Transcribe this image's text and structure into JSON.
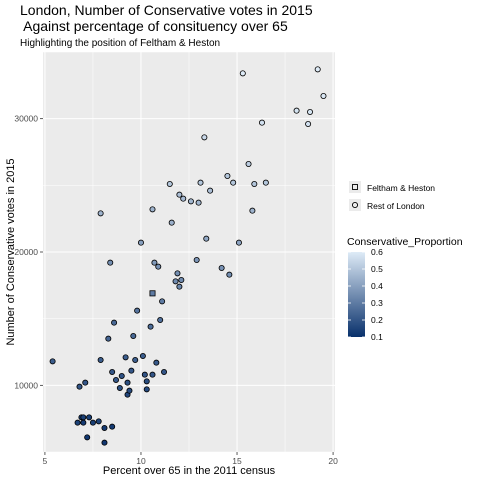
{
  "chart_data": {
    "type": "scatter",
    "title_line1": "London, Number of Conservative votes in 2015",
    "title_line2": " Against percentage of consituency over 65",
    "subtitle": "Highlighting the position of Feltham & Heston",
    "xlabel": "Percent over 65 in the 2011 census",
    "ylabel": "Number of Conservative votes in 2015",
    "xlim": [
      4.9,
      20.1
    ],
    "ylim": [
      5000,
      35000
    ],
    "x_ticks": [
      5,
      10,
      15,
      20
    ],
    "y_ticks": [
      10000,
      20000,
      30000
    ],
    "y_tick_labels": [
      "10000",
      "20000",
      "30000"
    ],
    "grid": true,
    "color_scale": {
      "name": "Conservative_Proportion",
      "low_value": 0.1,
      "high_value": 0.6,
      "low_color": "#08306b",
      "high_color": "#deebf7",
      "breaks": [
        "0.6",
        "0.5",
        "0.4",
        "0.3",
        "0.2",
        "0.1"
      ]
    },
    "shape_legend": {
      "entries": [
        {
          "label": "Feltham & Heston",
          "shape": "square"
        },
        {
          "label": "Rest of London",
          "shape": "circle"
        }
      ]
    },
    "series": [
      {
        "name": "Feltham & Heston",
        "shape": "square",
        "points": [
          {
            "x": 10.6,
            "y": 16900,
            "c": 0.3
          }
        ]
      },
      {
        "name": "Rest of London",
        "shape": "circle",
        "points": [
          {
            "x": 5.4,
            "y": 11800,
            "c": 0.22
          },
          {
            "x": 6.7,
            "y": 7200,
            "c": 0.15
          },
          {
            "x": 6.8,
            "y": 9900,
            "c": 0.2
          },
          {
            "x": 6.9,
            "y": 7600,
            "c": 0.14
          },
          {
            "x": 7.0,
            "y": 7200,
            "c": 0.13
          },
          {
            "x": 7.0,
            "y": 7600,
            "c": 0.14
          },
          {
            "x": 7.1,
            "y": 10200,
            "c": 0.2
          },
          {
            "x": 7.2,
            "y": 6100,
            "c": 0.12
          },
          {
            "x": 7.3,
            "y": 7600,
            "c": 0.14
          },
          {
            "x": 7.5,
            "y": 7200,
            "c": 0.14
          },
          {
            "x": 7.8,
            "y": 7300,
            "c": 0.15
          },
          {
            "x": 7.9,
            "y": 11900,
            "c": 0.22
          },
          {
            "x": 7.9,
            "y": 22900,
            "c": 0.45
          },
          {
            "x": 8.1,
            "y": 5700,
            "c": 0.12
          },
          {
            "x": 8.1,
            "y": 6800,
            "c": 0.13
          },
          {
            "x": 8.3,
            "y": 13500,
            "c": 0.24
          },
          {
            "x": 8.4,
            "y": 19200,
            "c": 0.35
          },
          {
            "x": 8.5,
            "y": 6900,
            "c": 0.13
          },
          {
            "x": 8.5,
            "y": 11000,
            "c": 0.2
          },
          {
            "x": 8.6,
            "y": 14700,
            "c": 0.25
          },
          {
            "x": 8.7,
            "y": 10400,
            "c": 0.2
          },
          {
            "x": 8.9,
            "y": 9800,
            "c": 0.18
          },
          {
            "x": 9.0,
            "y": 10700,
            "c": 0.19
          },
          {
            "x": 9.2,
            "y": 12100,
            "c": 0.22
          },
          {
            "x": 9.3,
            "y": 9300,
            "c": 0.16
          },
          {
            "x": 9.3,
            "y": 10200,
            "c": 0.18
          },
          {
            "x": 9.4,
            "y": 9600,
            "c": 0.17
          },
          {
            "x": 9.5,
            "y": 11100,
            "c": 0.2
          },
          {
            "x": 9.6,
            "y": 13700,
            "c": 0.25
          },
          {
            "x": 9.7,
            "y": 11900,
            "c": 0.22
          },
          {
            "x": 9.8,
            "y": 15600,
            "c": 0.28
          },
          {
            "x": 10.0,
            "y": 20700,
            "c": 0.4
          },
          {
            "x": 10.1,
            "y": 12200,
            "c": 0.22
          },
          {
            "x": 10.2,
            "y": 10800,
            "c": 0.2
          },
          {
            "x": 10.3,
            "y": 9700,
            "c": 0.17
          },
          {
            "x": 10.3,
            "y": 10300,
            "c": 0.18
          },
          {
            "x": 10.5,
            "y": 14400,
            "c": 0.26
          },
          {
            "x": 10.6,
            "y": 23200,
            "c": 0.45
          },
          {
            "x": 10.6,
            "y": 10800,
            "c": 0.2
          },
          {
            "x": 10.7,
            "y": 19200,
            "c": 0.38
          },
          {
            "x": 10.8,
            "y": 11700,
            "c": 0.21
          },
          {
            "x": 10.9,
            "y": 18900,
            "c": 0.36
          },
          {
            "x": 11.0,
            "y": 14900,
            "c": 0.27
          },
          {
            "x": 11.1,
            "y": 16300,
            "c": 0.3
          },
          {
            "x": 11.2,
            "y": 11000,
            "c": 0.2
          },
          {
            "x": 11.5,
            "y": 25100,
            "c": 0.5
          },
          {
            "x": 11.6,
            "y": 22200,
            "c": 0.44
          },
          {
            "x": 11.8,
            "y": 17800,
            "c": 0.34
          },
          {
            "x": 11.9,
            "y": 18400,
            "c": 0.35
          },
          {
            "x": 12.0,
            "y": 17400,
            "c": 0.33
          },
          {
            "x": 12.0,
            "y": 24300,
            "c": 0.48
          },
          {
            "x": 12.1,
            "y": 17900,
            "c": 0.34
          },
          {
            "x": 12.2,
            "y": 24000,
            "c": 0.47
          },
          {
            "x": 12.6,
            "y": 23800,
            "c": 0.46
          },
          {
            "x": 12.9,
            "y": 19400,
            "c": 0.37
          },
          {
            "x": 13.0,
            "y": 23700,
            "c": 0.46
          },
          {
            "x": 13.1,
            "y": 25200,
            "c": 0.5
          },
          {
            "x": 13.3,
            "y": 28600,
            "c": 0.55
          },
          {
            "x": 13.4,
            "y": 21000,
            "c": 0.42
          },
          {
            "x": 13.6,
            "y": 24600,
            "c": 0.48
          },
          {
            "x": 14.2,
            "y": 18800,
            "c": 0.36
          },
          {
            "x": 14.5,
            "y": 25700,
            "c": 0.5
          },
          {
            "x": 14.6,
            "y": 18300,
            "c": 0.35
          },
          {
            "x": 14.8,
            "y": 25200,
            "c": 0.5
          },
          {
            "x": 15.1,
            "y": 20700,
            "c": 0.41
          },
          {
            "x": 15.3,
            "y": 33400,
            "c": 0.6
          },
          {
            "x": 15.6,
            "y": 26600,
            "c": 0.52
          },
          {
            "x": 15.8,
            "y": 23100,
            "c": 0.45
          },
          {
            "x": 15.9,
            "y": 25100,
            "c": 0.5
          },
          {
            "x": 16.3,
            "y": 29700,
            "c": 0.57
          },
          {
            "x": 16.5,
            "y": 25200,
            "c": 0.5
          },
          {
            "x": 18.1,
            "y": 30600,
            "c": 0.58
          },
          {
            "x": 18.7,
            "y": 29600,
            "c": 0.57
          },
          {
            "x": 18.8,
            "y": 30500,
            "c": 0.58
          },
          {
            "x": 19.2,
            "y": 33700,
            "c": 0.6
          },
          {
            "x": 19.5,
            "y": 31700,
            "c": 0.59
          }
        ]
      }
    ]
  }
}
